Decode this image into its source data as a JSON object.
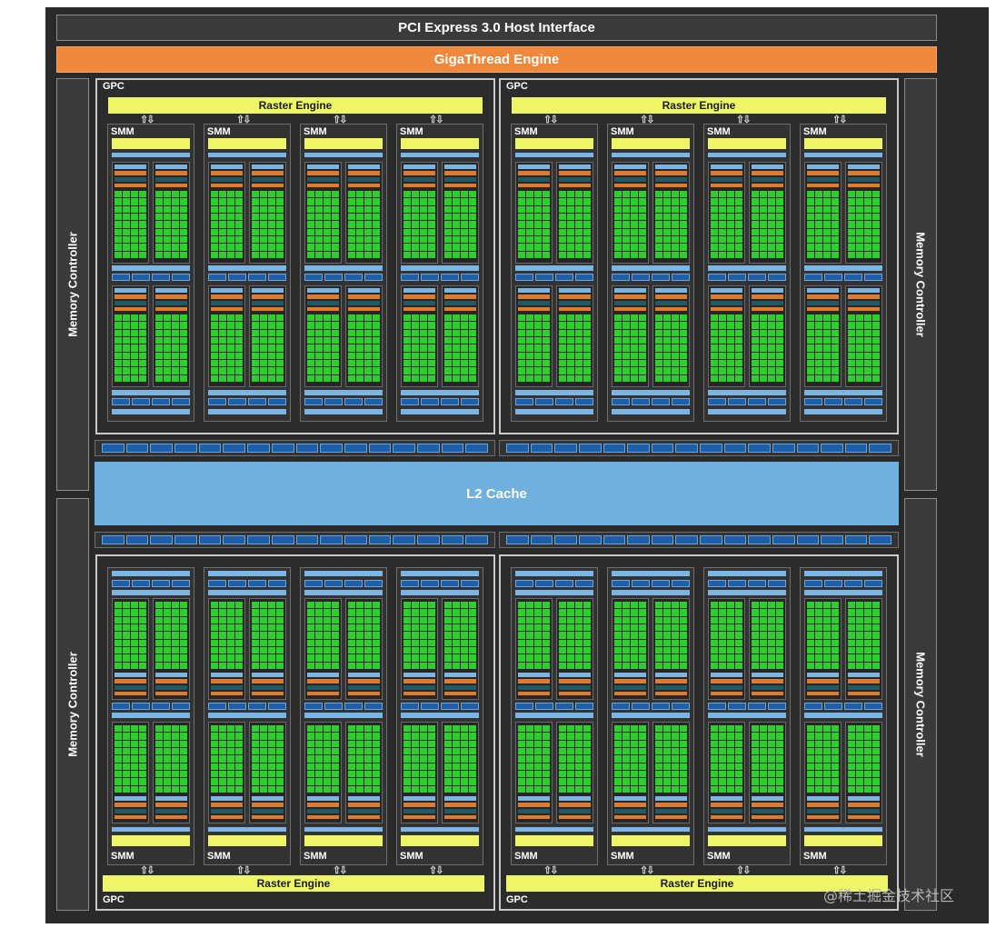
{
  "pcie": "PCI Express 3.0 Host Interface",
  "gigathread": "GigaThread Engine",
  "memory_controller": "Memory Controller",
  "l2_cache": "L2 Cache",
  "gpc_label": "GPC",
  "raster_engine": "Raster Engine",
  "smm_label": "SMM",
  "watermark": "@稀土掘金技术社区",
  "colors": {
    "background": "#2a2a2a",
    "gigathread": "#f0883c",
    "l2_cache": "#6fb0de",
    "raster_engine": "#eef566",
    "cuda_core": "#2ccf2c",
    "load_store": "#1d5fa8"
  }
}
